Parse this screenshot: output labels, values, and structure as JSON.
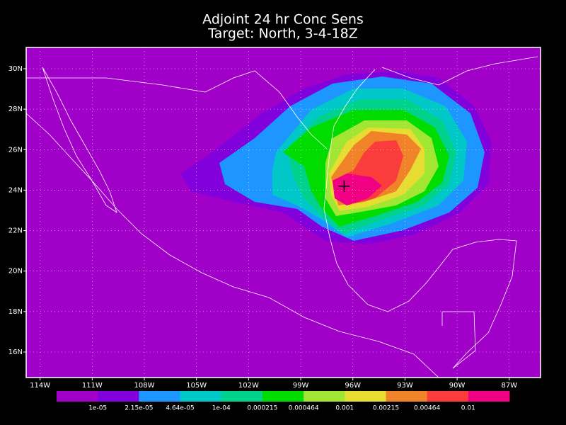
{
  "map": {
    "title": "Adjoint 24 hr Conc Sens",
    "subtitle": "Target: North, 3-4-18Z",
    "xlim": [
      -114.8,
      -85.2
    ],
    "ylim": [
      14.74,
      31.05
    ],
    "xticks": [
      {
        "value": -114,
        "label": "114W"
      },
      {
        "value": -111,
        "label": "111W"
      },
      {
        "value": -108,
        "label": "108W"
      },
      {
        "value": -105,
        "label": "105W"
      },
      {
        "value": -102,
        "label": "102W"
      },
      {
        "value": -99,
        "label": "99W"
      },
      {
        "value": -96,
        "label": "96W"
      },
      {
        "value": -93,
        "label": "93W"
      },
      {
        "value": -90,
        "label": "90W"
      },
      {
        "value": -87,
        "label": "87W"
      }
    ],
    "yticks": [
      {
        "value": 16,
        "label": "16N"
      },
      {
        "value": 18,
        "label": "18N"
      },
      {
        "value": 20,
        "label": "20N"
      },
      {
        "value": 22,
        "label": "22N"
      },
      {
        "value": 24,
        "label": "24N"
      },
      {
        "value": 26,
        "label": "26N"
      },
      {
        "value": 28,
        "label": "28N"
      },
      {
        "value": 30,
        "label": "30N"
      }
    ],
    "grid": true,
    "target": {
      "lon": -96.5,
      "lat": 24.2
    },
    "colorbar": {
      "colors": [
        "#a000c8",
        "#8200dc",
        "#1e96ff",
        "#00c8c8",
        "#00d28c",
        "#00dc00",
        "#a0e632",
        "#e6dc32",
        "#f08228",
        "#fa3c3c",
        "#f00082"
      ],
      "levels": [
        {
          "value": 1e-05,
          "label": "1e-05"
        },
        {
          "value": 2.15e-05,
          "label": "2.15e-05"
        },
        {
          "value": 4.64e-05,
          "label": "4.64e-05"
        },
        {
          "value": 0.0001,
          "label": "1e-04"
        },
        0.000215,
        0.000464,
        0.001,
        0.00215,
        0.00464,
        0.01
      ]
    }
  }
}
